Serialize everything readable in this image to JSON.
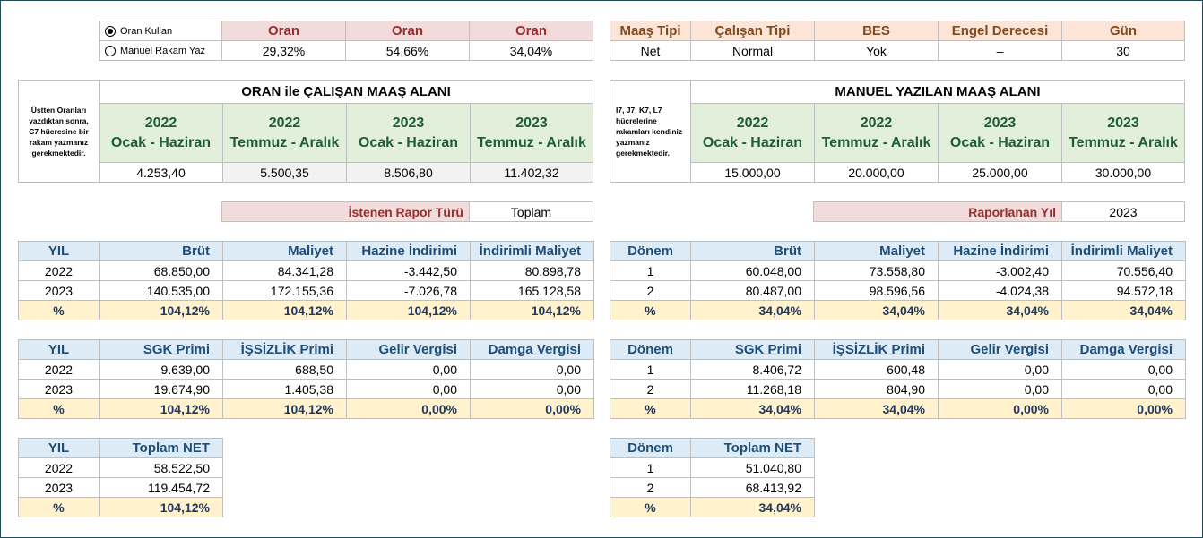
{
  "option_box": {
    "oran_kullan": "Oran Kullan",
    "manuel_rakam": "Manuel Rakam Yaz",
    "header": [
      "Oran",
      "Oran",
      "Oran"
    ],
    "values": [
      "29,32%",
      "54,66%",
      "34,04%"
    ]
  },
  "settings": {
    "headers": [
      "Maaş Tipi",
      "Çalışan Tipi",
      "BES",
      "Engel Derecesi",
      "Gün"
    ],
    "values": [
      "Net",
      "Normal",
      "Yok",
      "–",
      "30"
    ]
  },
  "oran_area": {
    "note": "Üstten Oranları yazdıktan sonra, C7 hücresine bir rakam yazmanız gerekmektedir.",
    "title": "ORAN ile ÇALIŞAN MAAŞ ALANI",
    "periods": [
      {
        "year": "2022",
        "span": "Ocak - Haziran"
      },
      {
        "year": "2022",
        "span": "Temmuz - Aralık"
      },
      {
        "year": "2023",
        "span": "Ocak - Haziran"
      },
      {
        "year": "2023",
        "span": "Temmuz - Aralık"
      }
    ],
    "values": [
      "4.253,40",
      "5.500,35",
      "8.506,80",
      "11.402,32"
    ]
  },
  "manuel_area": {
    "note": "I7, J7, K7, L7 hücrelerine rakamları kendiniz yazmanız gerekmektedir.",
    "title": "MANUEL YAZILAN MAAŞ ALANI",
    "periods": [
      {
        "year": "2022",
        "span": "Ocak - Haziran"
      },
      {
        "year": "2022",
        "span": "Temmuz - Aralık"
      },
      {
        "year": "2023",
        "span": "Ocak - Haziran"
      },
      {
        "year": "2023",
        "span": "Temmuz - Aralık"
      }
    ],
    "values": [
      "15.000,00",
      "20.000,00",
      "25.000,00",
      "30.000,00"
    ]
  },
  "report_type": {
    "label": "İstenen Rapor Türü",
    "value": "Toplam"
  },
  "report_year": {
    "label": "Raporlanan Yıl",
    "value": "2023"
  },
  "left_table1": {
    "headers": [
      "YIL",
      "Brüt",
      "Maliyet",
      "Hazine İndirimi",
      "İndirimli Maliyet"
    ],
    "rows": [
      [
        "2022",
        "68.850,00",
        "84.341,28",
        "-3.442,50",
        "80.898,78"
      ],
      [
        "2023",
        "140.535,00",
        "172.155,36",
        "-7.026,78",
        "165.128,58"
      ],
      [
        "%",
        "104,12%",
        "104,12%",
        "104,12%",
        "104,12%"
      ]
    ]
  },
  "right_table1": {
    "headers": [
      "Dönem",
      "Brüt",
      "Maliyet",
      "Hazine İndirimi",
      "İndirimli Maliyet"
    ],
    "rows": [
      [
        "1",
        "60.048,00",
        "73.558,80",
        "-3.002,40",
        "70.556,40"
      ],
      [
        "2",
        "80.487,00",
        "98.596,56",
        "-4.024,38",
        "94.572,18"
      ],
      [
        "%",
        "34,04%",
        "34,04%",
        "34,04%",
        "34,04%"
      ]
    ]
  },
  "left_table2": {
    "headers": [
      "YIL",
      "SGK Primi",
      "İŞSİZLİK Primi",
      "Gelir Vergisi",
      "Damga Vergisi"
    ],
    "rows": [
      [
        "2022",
        "9.639,00",
        "688,50",
        "0,00",
        "0,00"
      ],
      [
        "2023",
        "19.674,90",
        "1.405,38",
        "0,00",
        "0,00"
      ],
      [
        "%",
        "104,12%",
        "104,12%",
        "0,00%",
        "0,00%"
      ]
    ]
  },
  "right_table2": {
    "headers": [
      "Dönem",
      "SGK Primi",
      "İŞSİZLİK Primi",
      "Gelir Vergisi",
      "Damga Vergisi"
    ],
    "rows": [
      [
        "1",
        "8.406,72",
        "600,48",
        "0,00",
        "0,00"
      ],
      [
        "2",
        "11.268,18",
        "804,90",
        "0,00",
        "0,00"
      ],
      [
        "%",
        "34,04%",
        "34,04%",
        "0,00%",
        "0,00%"
      ]
    ]
  },
  "left_table3": {
    "headers": [
      "YIL",
      "Toplam NET"
    ],
    "rows": [
      [
        "2022",
        "58.522,50"
      ],
      [
        "2023",
        "119.454,72"
      ],
      [
        "%",
        "104,12%"
      ]
    ]
  },
  "right_table3": {
    "headers": [
      "Dönem",
      "Toplam NET"
    ],
    "rows": [
      [
        "1",
        "51.040,80"
      ],
      [
        "2",
        "68.413,92"
      ],
      [
        "%",
        "34,04%"
      ]
    ]
  }
}
